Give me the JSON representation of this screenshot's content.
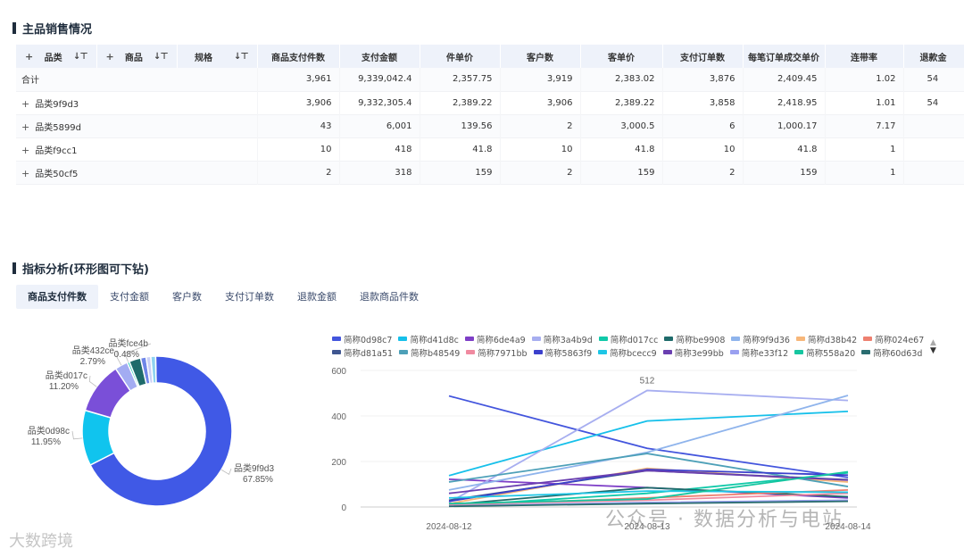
{
  "sales_section": {
    "title": "主品销售情况"
  },
  "table": {
    "headers": {
      "category": "品类",
      "product": "商品",
      "spec": "规格",
      "metrics": [
        "商品支付件数",
        "支付金额",
        "件单价",
        "客户数",
        "客单价",
        "支付订单数",
        "每笔订单成交单价",
        "连带率",
        "退款金"
      ]
    },
    "rows": [
      {
        "label": "合计",
        "expand": false,
        "values": [
          "3,961",
          "9,339,042.4",
          "2,357.75",
          "3,919",
          "2,383.02",
          "3,876",
          "2,409.45",
          "1.02",
          "54"
        ]
      },
      {
        "label": "品类9f9d3",
        "expand": true,
        "values": [
          "3,906",
          "9,332,305.4",
          "2,389.22",
          "3,906",
          "2,389.22",
          "3,858",
          "2,418.95",
          "1.01",
          "54"
        ]
      },
      {
        "label": "品类5899d",
        "expand": true,
        "values": [
          "43",
          "6,001",
          "139.56",
          "2",
          "3,000.5",
          "6",
          "1,000.17",
          "7.17",
          ""
        ]
      },
      {
        "label": "品类f9cc1",
        "expand": true,
        "values": [
          "10",
          "418",
          "41.8",
          "10",
          "41.8",
          "10",
          "41.8",
          "1",
          ""
        ]
      },
      {
        "label": "品类50cf5",
        "expand": true,
        "values": [
          "2",
          "318",
          "159",
          "2",
          "159",
          "2",
          "159",
          "1",
          ""
        ]
      }
    ]
  },
  "analysis_section": {
    "title": "指标分析(环形图可下钻)"
  },
  "tabs": [
    "商品支付件数",
    "支付金额",
    "客户数",
    "支付订单数",
    "退款金额",
    "退款商品件数"
  ],
  "active_tab": 0,
  "legend_more_icon": "caret-up-down-icon",
  "chart_data": [
    {
      "type": "pie",
      "variant": "donut",
      "slices": [
        {
          "label": "品类9f9d3",
          "percent": "67.85%",
          "value": 67.85,
          "color": "#4059e6"
        },
        {
          "label": "品类0d98c",
          "percent": "11.95%",
          "value": 11.95,
          "color": "#10c4ee"
        },
        {
          "label": "品类d017c",
          "percent": "11.20%",
          "value": 11.2,
          "color": "#7a4fd8"
        },
        {
          "label": "品类432ce",
          "percent": "2.79%",
          "value": 2.79,
          "color": "#a3acf2"
        },
        {
          "label": "品类fce4b",
          "percent": "0.48%",
          "value": 0.48,
          "color": "#14c8b0"
        },
        {
          "label": "",
          "percent": "",
          "value": 2.5,
          "color": "#1f6b6b"
        },
        {
          "label": "",
          "percent": "",
          "value": 1.2,
          "color": "#6f86e8"
        },
        {
          "label": "",
          "percent": "",
          "value": 1.0,
          "color": "#c9cff7"
        },
        {
          "label": "",
          "percent": "",
          "value": 1.03,
          "color": "#8fd3f0"
        }
      ]
    },
    {
      "type": "line",
      "x": [
        "2024-08-12",
        "2024-08-13",
        "2024-08-14"
      ],
      "ylim": [
        0,
        600
      ],
      "yticks": [
        0,
        200,
        400,
        600
      ],
      "annotations": [
        {
          "x": "2024-08-13",
          "text": "512"
        }
      ],
      "series": [
        {
          "name": "简称0d98c7",
          "color": "#4355dd",
          "values": [
            488,
            258,
            130
          ]
        },
        {
          "name": "简称d41d8c",
          "color": "#16c0ea",
          "values": [
            138,
            378,
            420
          ]
        },
        {
          "name": "简称6de4a9",
          "color": "#7e3fc7",
          "values": [
            122,
            85,
            40
          ]
        },
        {
          "name": "简称3a4b9d",
          "color": "#a7aef0",
          "values": [
            20,
            512,
            468
          ]
        },
        {
          "name": "简称d017cc",
          "color": "#10c9a9",
          "values": [
            5,
            60,
            150
          ]
        },
        {
          "name": "简称be9908",
          "color": "#1f6b6b",
          "values": [
            10,
            85,
            45
          ]
        },
        {
          "name": "简称9f9d36",
          "color": "#8fb4ec",
          "values": [
            75,
            240,
            490
          ]
        },
        {
          "name": "简称d38b42",
          "color": "#f7b77a",
          "values": [
            15,
            170,
            110
          ]
        },
        {
          "name": "简称024e67",
          "color": "#ee8070",
          "values": [
            8,
            40,
            75
          ]
        },
        {
          "name": "简称d81a51",
          "color": "#3f5690",
          "values": [
            30,
            160,
            120
          ]
        },
        {
          "name": "简称b48549",
          "color": "#4da0b8",
          "values": [
            110,
            235,
            90
          ]
        },
        {
          "name": "简称7971bb",
          "color": "#f08aa0",
          "values": [
            12,
            30,
            60
          ]
        },
        {
          "name": "简称5863f9",
          "color": "#3b40cc",
          "values": [
            25,
            165,
            140
          ]
        },
        {
          "name": "简称bcecc9",
          "color": "#1ec6e6",
          "values": [
            40,
            70,
            65
          ]
        },
        {
          "name": "简称3e99bb",
          "color": "#6a3fb0",
          "values": [
            60,
            160,
            118
          ]
        },
        {
          "name": "简称e33f12",
          "color": "#9aa0f0",
          "values": [
            5,
            20,
            30
          ]
        },
        {
          "name": "简称558a20",
          "color": "#16c6a0",
          "values": [
            15,
            35,
            155
          ]
        },
        {
          "name": "简称60d63d",
          "color": "#2a6d70",
          "values": [
            3,
            15,
            25
          ]
        }
      ]
    }
  ],
  "watermark": {
    "text": "公众号 · 数据分析与电站",
    "left_text": "大数跨境"
  }
}
